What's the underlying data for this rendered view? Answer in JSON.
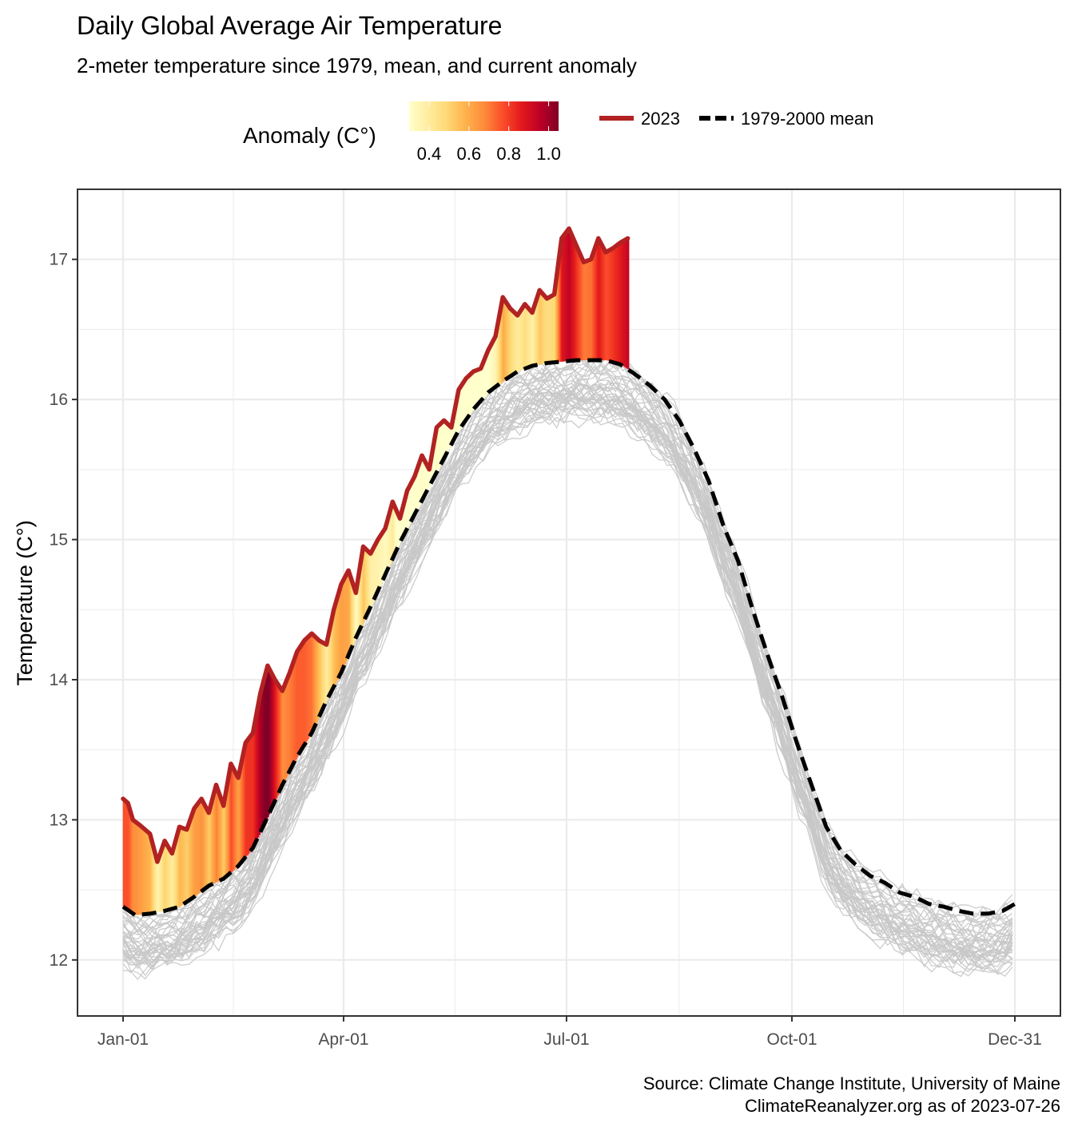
{
  "chart_data": {
    "type": "line",
    "title": "Daily Global Average Air Temperature",
    "subtitle": "2-meter temperature since 1979, mean, and current anomaly",
    "xlabel": "",
    "ylabel": "Temperature (C°)",
    "caption_lines": [
      "Source: Climate Change Institute, University of Maine",
      "ClimateReanalyzer.org as of 2023-07-26"
    ],
    "x_unit": "day_of_year",
    "xlim": [
      1,
      365
    ],
    "ylim": [
      11.6,
      17.5
    ],
    "x_ticks": [
      {
        "label": "Jan-01",
        "value": 1
      },
      {
        "label": "Apr-01",
        "value": 91
      },
      {
        "label": "Jul-01",
        "value": 182
      },
      {
        "label": "Oct-01",
        "value": 274
      },
      {
        "label": "Dec-31",
        "value": 365
      }
    ],
    "y_ticks": [
      12,
      13,
      14,
      15,
      16,
      17
    ],
    "grid": true,
    "legend": {
      "placement": "top",
      "colorbar": {
        "title": "Anomaly (C°)",
        "ticks": [
          "0.4",
          "0.6",
          "0.8",
          "1.0"
        ],
        "range": [
          0.3,
          1.05
        ]
      },
      "items": [
        {
          "label": "2023",
          "color": "#b22222",
          "style": "solid"
        },
        {
          "label": "1979-2000 mean",
          "color": "#000000",
          "style": "dashed"
        }
      ]
    },
    "colors": {
      "grid": "#ebebeb",
      "historical": "#c8c8c8",
      "current": "#b22222",
      "mean": "#000000",
      "panel_border": "#333333"
    },
    "colorscale": [
      "#ffffcc",
      "#ffeda0",
      "#fed976",
      "#feb24c",
      "#fd8d3c",
      "#fc4e2a",
      "#e31a1c",
      "#bd0026",
      "#800026"
    ],
    "series": [
      {
        "name": "2023",
        "x": [
          1,
          3,
          5,
          8,
          12,
          15,
          18,
          21,
          24,
          27,
          30,
          33,
          36,
          39,
          42,
          45,
          48,
          51,
          54,
          57,
          60,
          63,
          66,
          69,
          72,
          75,
          78,
          81,
          84,
          87,
          90,
          93,
          96,
          99,
          102,
          105,
          108,
          111,
          114,
          117,
          120,
          123,
          126,
          129,
          132,
          135,
          138,
          141,
          144,
          147,
          150,
          153,
          156,
          159,
          162,
          165,
          168,
          171,
          174,
          177,
          180,
          183,
          186,
          189,
          192,
          195,
          198,
          201,
          204,
          207
        ],
        "y": [
          13.15,
          13.12,
          13.0,
          12.96,
          12.9,
          12.7,
          12.85,
          12.76,
          12.95,
          12.93,
          13.08,
          13.15,
          13.05,
          13.25,
          13.1,
          13.4,
          13.3,
          13.55,
          13.62,
          13.9,
          14.1,
          14.0,
          13.92,
          14.05,
          14.2,
          14.28,
          14.33,
          14.28,
          14.25,
          14.5,
          14.68,
          14.78,
          14.62,
          14.95,
          14.9,
          15.0,
          15.08,
          15.27,
          15.15,
          15.35,
          15.45,
          15.6,
          15.5,
          15.8,
          15.85,
          15.8,
          16.07,
          16.15,
          16.2,
          16.22,
          16.35,
          16.45,
          16.73,
          16.65,
          16.6,
          16.68,
          16.62,
          16.78,
          16.72,
          16.75,
          17.15,
          17.22,
          17.1,
          16.98,
          17.0,
          17.15,
          17.05,
          17.08,
          17.12,
          17.15
        ]
      },
      {
        "name": "1979-2000 mean",
        "x": [
          1,
          6,
          12,
          18,
          24,
          30,
          36,
          42,
          48,
          54,
          60,
          66,
          72,
          78,
          84,
          90,
          96,
          102,
          108,
          114,
          120,
          126,
          132,
          138,
          144,
          150,
          156,
          162,
          168,
          174,
          180,
          186,
          192,
          198,
          204,
          210,
          216,
          222,
          228,
          234,
          240,
          246,
          252,
          258,
          264,
          270,
          276,
          282,
          288,
          294,
          300,
          306,
          312,
          318,
          324,
          330,
          336,
          342,
          348,
          354,
          360,
          365
        ],
        "y": [
          12.38,
          12.32,
          12.33,
          12.35,
          12.38,
          12.45,
          12.53,
          12.58,
          12.67,
          12.8,
          13.02,
          13.25,
          13.45,
          13.62,
          13.85,
          14.05,
          14.3,
          14.52,
          14.75,
          14.98,
          15.18,
          15.38,
          15.58,
          15.78,
          15.93,
          16.05,
          16.13,
          16.2,
          16.24,
          16.26,
          16.27,
          16.28,
          16.28,
          16.28,
          16.25,
          16.18,
          16.1,
          16.0,
          15.85,
          15.65,
          15.42,
          15.1,
          14.85,
          14.5,
          14.18,
          13.88,
          13.55,
          13.25,
          12.95,
          12.78,
          12.68,
          12.6,
          12.55,
          12.48,
          12.45,
          12.4,
          12.38,
          12.35,
          12.33,
          12.33,
          12.35,
          12.4
        ]
      }
    ]
  }
}
